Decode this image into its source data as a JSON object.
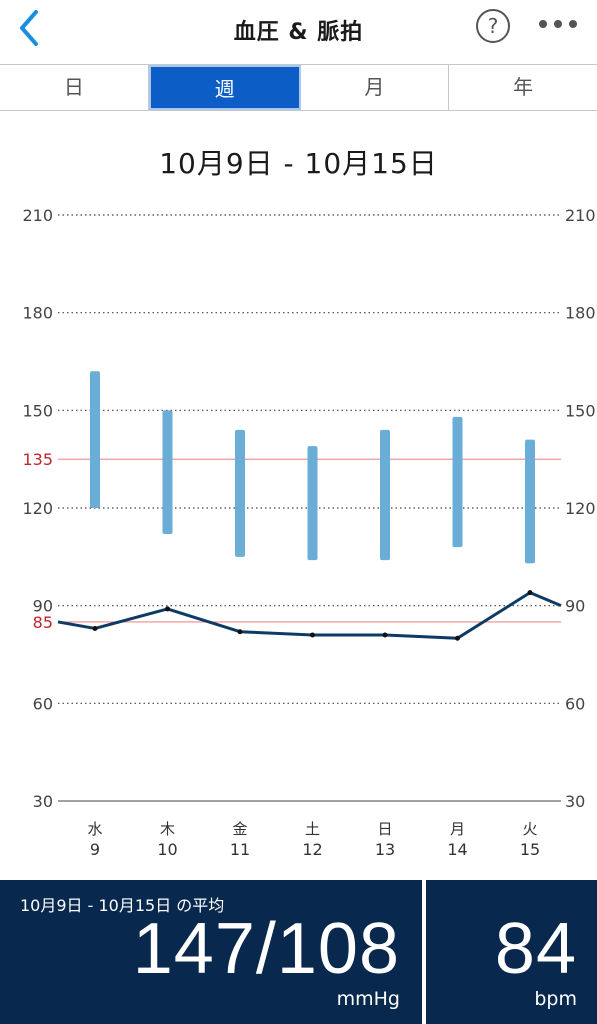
{
  "header": {
    "title": "血圧 & 脈拍",
    "help_symbol": "?",
    "back_icon": "chevron-left-icon",
    "more_icon": "more-horizontal-icon",
    "accent_color": "#1a8fe0"
  },
  "tabs": [
    {
      "label": "日",
      "active": false
    },
    {
      "label": "週",
      "active": true
    },
    {
      "label": "月",
      "active": false
    },
    {
      "label": "年",
      "active": false
    }
  ],
  "date_range": "10月9日 - 10月15日",
  "chart_data": {
    "type": "bar",
    "categories": [
      {
        "weekday": "水",
        "day": "9"
      },
      {
        "weekday": "木",
        "day": "10"
      },
      {
        "weekday": "金",
        "day": "11"
      },
      {
        "weekday": "土",
        "day": "12"
      },
      {
        "weekday": "日",
        "day": "13"
      },
      {
        "weekday": "月",
        "day": "14"
      },
      {
        "weekday": "火",
        "day": "15"
      }
    ],
    "ylim": [
      30,
      210
    ],
    "yticks": [
      "30",
      "60",
      "90",
      "120",
      "150",
      "180",
      "210"
    ],
    "thresholds": [
      {
        "label": "135",
        "value": 135
      },
      {
        "label": "85",
        "value": 85
      }
    ],
    "series": [
      {
        "type": "range-bar",
        "color": "#6aaed8",
        "values": [
          [
            120,
            162
          ],
          [
            112,
            150
          ],
          [
            105,
            144
          ],
          [
            104,
            139
          ],
          [
            104,
            144
          ],
          [
            108,
            148
          ],
          [
            103,
            141
          ]
        ]
      },
      {
        "type": "line",
        "color": "#0d3b66",
        "start": 85,
        "end": 90,
        "values": [
          83,
          89,
          82,
          81,
          81,
          80,
          94
        ]
      }
    ],
    "colors": {
      "threshold": "#f08a8a",
      "threshold_label": "#c0262d",
      "grid": "#444444"
    }
  },
  "summary": {
    "label": "10月9日 - 10月15日 の平均",
    "bp_value": "147/108",
    "bp_unit": "mmHg",
    "pulse_value": "84",
    "pulse_unit": "bpm"
  }
}
